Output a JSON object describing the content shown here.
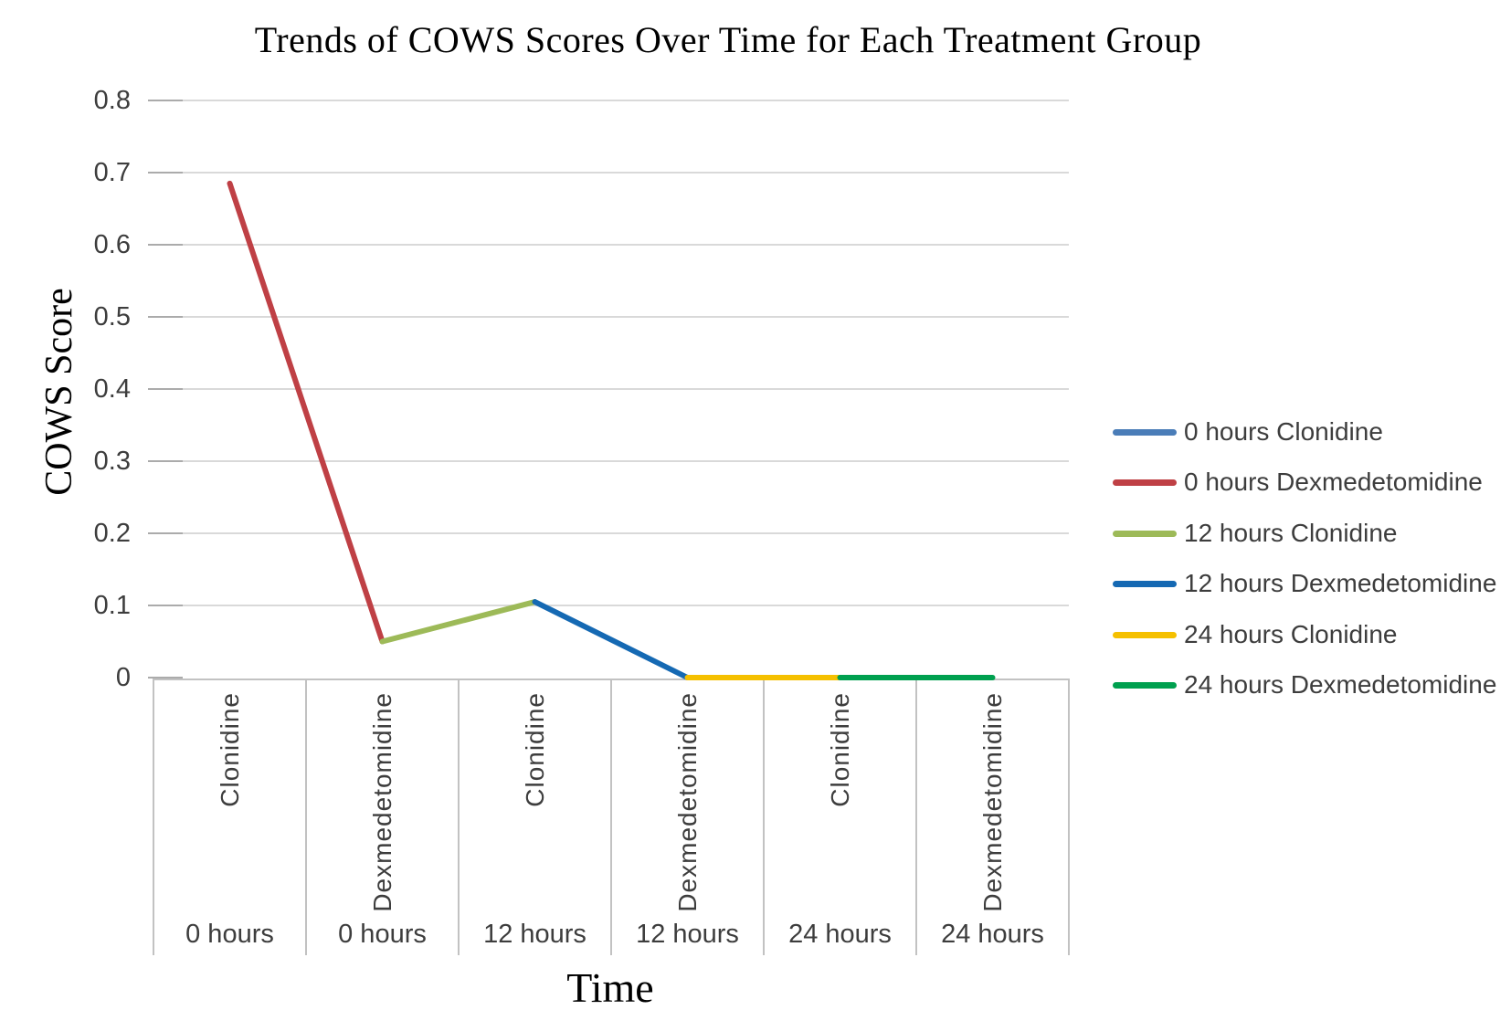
{
  "chart_data": {
    "type": "line",
    "title": "Trends of COWS Scores Over Time for Each Treatment Group",
    "xlabel": "Time",
    "ylabel": "COWS Score",
    "ylim": [
      0,
      0.8
    ],
    "yticks": [
      "0",
      "0.1",
      "0.2",
      "0.3",
      "0.4",
      "0.5",
      "0.6",
      "0.7",
      "0.8"
    ],
    "grid": true,
    "legend_position": "right",
    "categories": [
      {
        "drug": "Clonidine",
        "time": "0 hours"
      },
      {
        "drug": "Dexmedetomidine",
        "time": "0 hours"
      },
      {
        "drug": "Clonidine",
        "time": "12 hours"
      },
      {
        "drug": "Dexmedetomidine",
        "time": "12 hours"
      },
      {
        "drug": "Clonidine",
        "time": "24 hours"
      },
      {
        "drug": "Dexmedetomidine",
        "time": "24 hours"
      }
    ],
    "series": [
      {
        "name": "0 hours Clonidine",
        "color": "#4a7db8",
        "value": 0.685
      },
      {
        "name": "0 hours Dexmedetomidine",
        "color": "#bf4045",
        "value": 0.05
      },
      {
        "name": "12 hours Clonidine",
        "color": "#9dba58",
        "value": 0.105
      },
      {
        "name": "12 hours Dexmedetomidine",
        "color": "#1569b3",
        "value": 0
      },
      {
        "name": "24 hours Clonidine",
        "color": "#f5c000",
        "value": 0
      },
      {
        "name": "24 hours Dexmedetomidine",
        "color": "#00a04f",
        "value": 0
      }
    ],
    "style_colors": {
      "gridline": "#d9d9d9",
      "tick": "#ababab",
      "table_border": "#c2c2c2",
      "axis_text": "#3d3d3d",
      "title_text": "#000000"
    }
  }
}
